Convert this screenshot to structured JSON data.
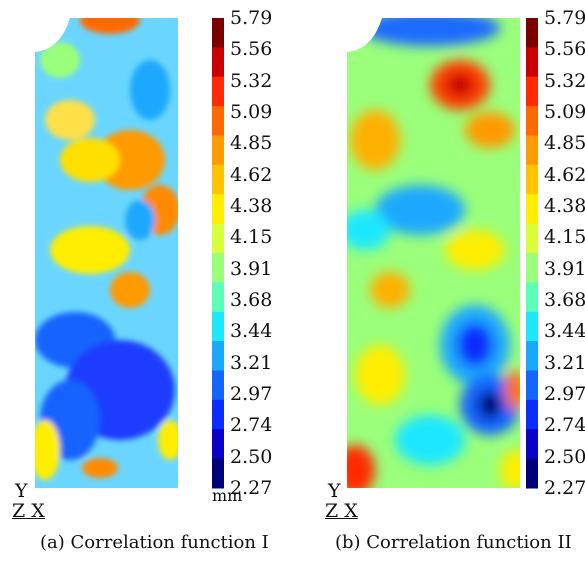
{
  "colorbar": {
    "ticks": [
      "5.79",
      "5.56",
      "5.32",
      "5.09",
      "4.85",
      "4.62",
      "4.38",
      "4.15",
      "3.91",
      "3.68",
      "3.44",
      "3.21",
      "2.97",
      "2.74",
      "2.50",
      "2.27"
    ],
    "unit": "mm",
    "colors": [
      "#7a0000",
      "#c80000",
      "#ff2a00",
      "#ff6a00",
      "#ff9a00",
      "#ffc400",
      "#ffee00",
      "#d8ff3a",
      "#9aff7a",
      "#5cffb8",
      "#1ee8ff",
      "#1aa8ff",
      "#1464ff",
      "#0a2cff",
      "#0a00c8",
      "#00007a"
    ]
  },
  "panels": [
    {
      "id": "a",
      "caption": "(a) Correlation function I",
      "axis_y": "Y",
      "axis_zx": "Z X"
    },
    {
      "id": "b",
      "caption": "(b) Correlation function II",
      "axis_y": "Y",
      "axis_zx": "Z X"
    }
  ]
}
